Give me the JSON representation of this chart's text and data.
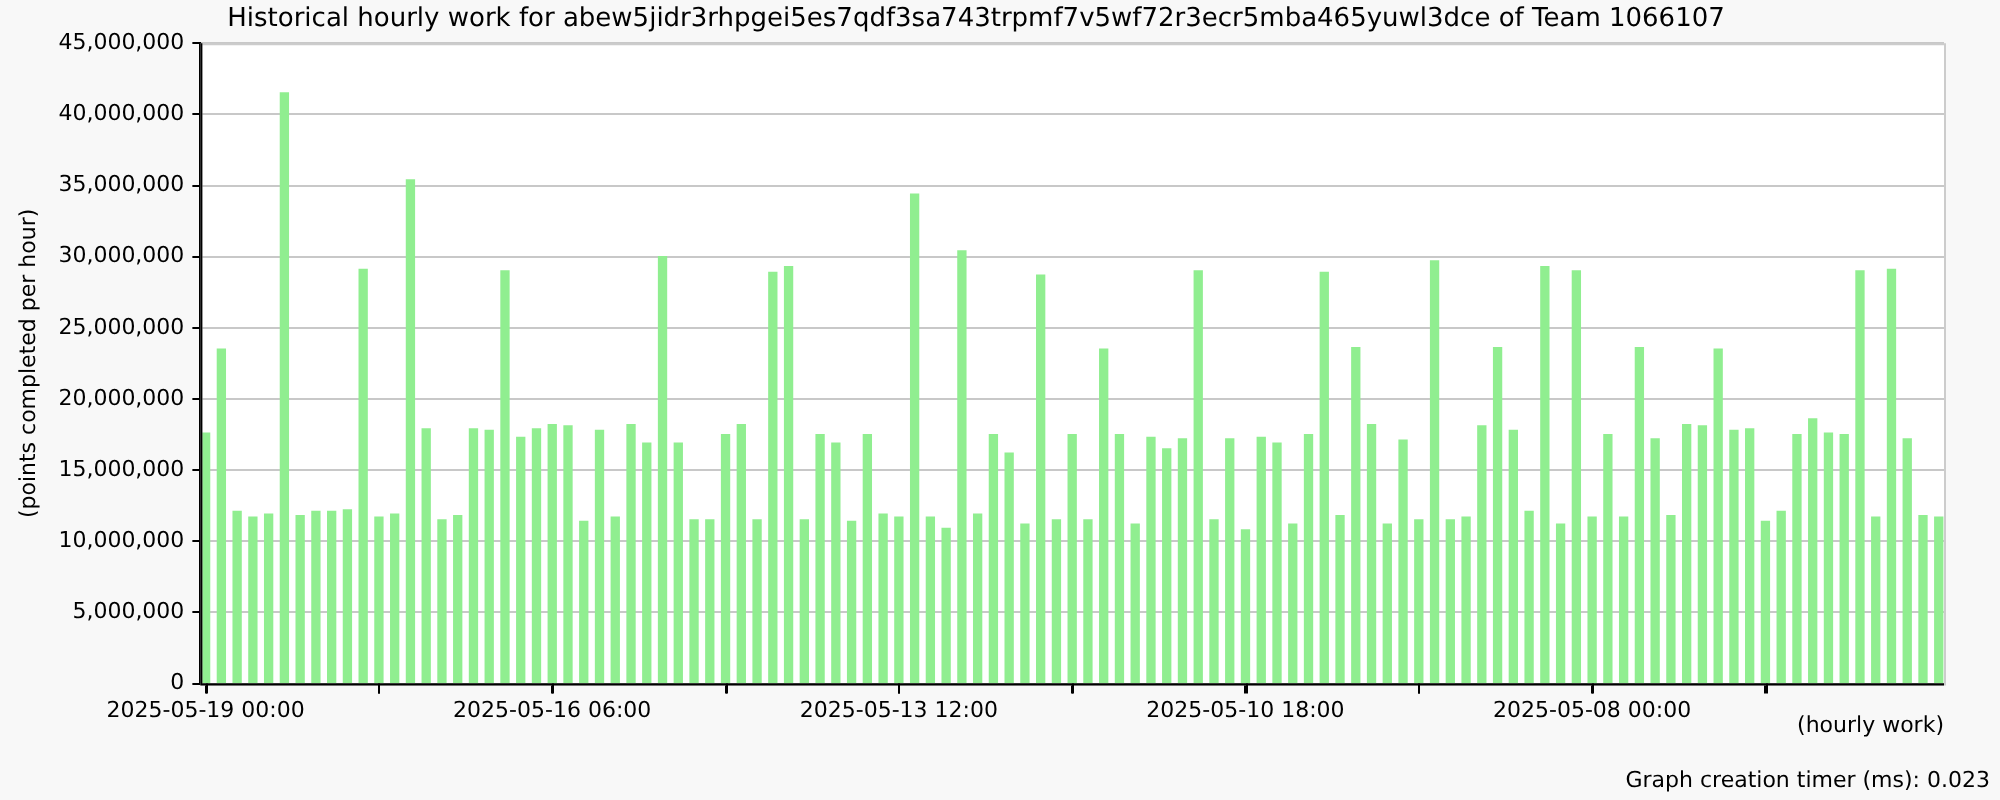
{
  "chart_data": {
    "type": "bar",
    "title": "Historical hourly work for abew5jidr3rhpgei5es7qdf3sa743trpmf7v5wf72r3ecr5mba465yuwl3dce of Team 1066107",
    "xlabel": "(hourly work)",
    "ylabel": "(points completed per hour)",
    "annotations": [
      "Graph creation timer (ms): 0.023"
    ],
    "color": "#90ee90",
    "grid": "y",
    "x": [
      "2025-05-19T00:00",
      "2025-05-18T21:00",
      "2025-05-18T18:00",
      "2025-05-18T15:00",
      "2025-05-18T12:00",
      "2025-05-18T09:00",
      "2025-05-18T06:00",
      "2025-05-18T03:00",
      "2025-05-18T00:00",
      "2025-05-17T21:00",
      "2025-05-17T18:00",
      "2025-05-17T15:00",
      "2025-05-17T12:00",
      "2025-05-17T09:00",
      "2025-05-17T06:00",
      "2025-05-17T03:00",
      "2025-05-17T00:00",
      "2025-05-16T21:00",
      "2025-05-16T18:00",
      "2025-05-16T15:00",
      "2025-05-16T12:00",
      "2025-05-16T09:00",
      "2025-05-16T06:00",
      "2025-05-16T03:00",
      "2025-05-16T00:00",
      "2025-05-15T21:00",
      "2025-05-15T18:00",
      "2025-05-15T15:00",
      "2025-05-15T12:00",
      "2025-05-15T09:00",
      "2025-05-15T06:00",
      "2025-05-15T03:00",
      "2025-05-15T00:00",
      "2025-05-14T21:00",
      "2025-05-14T18:00",
      "2025-05-14T15:00",
      "2025-05-14T12:00",
      "2025-05-14T09:00",
      "2025-05-14T06:00",
      "2025-05-14T03:00",
      "2025-05-14T00:00",
      "2025-05-13T21:00",
      "2025-05-13T18:00",
      "2025-05-13T15:00",
      "2025-05-13T12:00",
      "2025-05-13T09:00",
      "2025-05-13T06:00",
      "2025-05-13T03:00",
      "2025-05-13T00:00",
      "2025-05-12T21:00",
      "2025-05-12T18:00",
      "2025-05-12T15:00",
      "2025-05-12T12:00",
      "2025-05-12T09:00",
      "2025-05-12T06:00",
      "2025-05-12T03:00",
      "2025-05-12T00:00",
      "2025-05-11T21:00",
      "2025-05-11T18:00",
      "2025-05-11T15:00",
      "2025-05-11T12:00",
      "2025-05-11T09:00",
      "2025-05-11T06:00",
      "2025-05-11T03:00",
      "2025-05-11T00:00",
      "2025-05-10T21:00",
      "2025-05-10T18:00",
      "2025-05-10T15:00",
      "2025-05-10T12:00",
      "2025-05-10T09:00",
      "2025-05-10T06:00",
      "2025-05-10T03:00",
      "2025-05-10T00:00",
      "2025-05-09T21:00",
      "2025-05-09T18:00",
      "2025-05-09T15:00",
      "2025-05-09T12:00",
      "2025-05-09T09:00",
      "2025-05-09T06:00",
      "2025-05-09T03:00",
      "2025-05-09T00:00",
      "2025-05-08T21:00",
      "2025-05-08T18:00",
      "2025-05-08T15:00",
      "2025-05-08T12:00",
      "2025-05-08T09:00",
      "2025-05-08T06:00",
      "2025-05-08T03:00",
      "2025-05-08T00:00",
      "2025-05-07T21:00",
      "2025-05-07T18:00",
      "2025-05-07T15:00",
      "2025-05-07T12:00",
      "2025-05-07T09:00",
      "2025-05-07T06:00",
      "2025-05-07T03:00",
      "2025-05-07T00:00",
      "2025-05-06T21:00",
      "2025-05-06T18:00",
      "2025-05-06T15:00",
      "2025-05-06T12:00",
      "2025-05-06T09:00",
      "2025-05-06T06:00",
      "2025-05-06T03:00",
      "2025-05-06T00:00",
      "2025-05-05T21:00",
      "2025-05-05T18:00",
      "2025-05-05T15:00",
      "2025-05-05T12:00",
      "2025-05-05T09:00",
      "2025-05-05T06:00"
    ],
    "values": [
      17600000,
      23500000,
      12100000,
      11700000,
      11900000,
      41500000,
      11800000,
      12100000,
      12100000,
      12200000,
      29100000,
      11700000,
      11900000,
      35400000,
      17900000,
      11500000,
      11800000,
      17900000,
      17800000,
      29000000,
      17300000,
      17900000,
      18200000,
      18100000,
      11400000,
      17800000,
      11700000,
      18200000,
      16900000,
      30000000,
      16900000,
      11500000,
      11500000,
      17500000,
      18200000,
      11500000,
      28900000,
      29300000,
      11500000,
      17500000,
      16900000,
      11400000,
      17500000,
      11900000,
      11700000,
      34400000,
      11700000,
      10900000,
      30400000,
      11900000,
      17500000,
      16200000,
      11200000,
      28700000,
      11500000,
      17500000,
      11500000,
      23500000,
      17500000,
      11200000,
      17300000,
      16500000,
      17200000,
      29000000,
      11500000,
      17200000,
      10800000,
      17300000,
      16900000,
      11200000,
      17500000,
      28900000,
      11800000,
      23600000,
      18200000,
      11200000,
      17100000,
      11500000,
      29700000,
      11500000,
      11700000,
      18100000,
      23600000,
      17800000,
      12100000,
      29300000,
      11200000,
      29000000,
      11700000,
      17500000,
      11700000,
      23600000,
      17200000,
      11800000,
      18200000,
      18100000,
      23500000,
      17800000,
      17900000,
      11400000,
      12100000,
      17500000,
      18600000,
      17600000,
      17500000,
      29000000,
      11700000,
      29100000,
      17200000,
      11800000,
      11700000
    ],
    "xlim": [
      "2025-05-19T01:00",
      "2025-05-05T05:00"
    ],
    "xticks": [
      {
        "value": "2025-05-19T00:00",
        "label": "2025-05-19 00:00"
      },
      {
        "value": "2025-05-17T15:00",
        "label": null
      },
      {
        "value": "2025-05-16T06:00",
        "label": "2025-05-16 06:00"
      },
      {
        "value": "2025-05-14T21:00",
        "label": null
      },
      {
        "value": "2025-05-13T12:00",
        "label": "2025-05-13 12:00"
      },
      {
        "value": "2025-05-12T03:00",
        "label": null
      },
      {
        "value": "2025-05-10T18:00",
        "label": "2025-05-10 18:00"
      },
      {
        "value": "2025-05-09T09:00",
        "label": null
      },
      {
        "value": "2025-05-08T00:00",
        "label": "2025-05-08 00:00"
      },
      {
        "value": "2025-05-06T15:00",
        "label": null
      }
    ],
    "ylim": [
      0,
      45000000
    ],
    "yticks": [
      {
        "value": 0,
        "label": "0"
      },
      {
        "value": 5000000,
        "label": "5,000,000"
      },
      {
        "value": 10000000,
        "label": "10,000,000"
      },
      {
        "value": 15000000,
        "label": "15,000,000"
      },
      {
        "value": 20000000,
        "label": "20,000,000"
      },
      {
        "value": 25000000,
        "label": "25,000,000"
      },
      {
        "value": 30000000,
        "label": "30,000,000"
      },
      {
        "value": 35000000,
        "label": "35,000,000"
      },
      {
        "value": 40000000,
        "label": "40,000,000"
      },
      {
        "value": 45000000,
        "label": "45,000,000"
      }
    ]
  }
}
